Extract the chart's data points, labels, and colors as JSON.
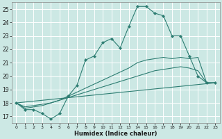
{
  "title": "",
  "xlabel": "Humidex (Indice chaleur)",
  "xlim": [
    -0.5,
    23.5
  ],
  "ylim": [
    16.5,
    25.5
  ],
  "yticks": [
    17,
    18,
    19,
    20,
    21,
    22,
    23,
    24,
    25
  ],
  "xticks": [
    0,
    1,
    2,
    3,
    4,
    5,
    6,
    7,
    8,
    9,
    10,
    11,
    12,
    13,
    14,
    15,
    16,
    17,
    18,
    19,
    20,
    21,
    22,
    23
  ],
  "background_color": "#cce8e4",
  "grid_color": "#ffffff",
  "line_color": "#2d7d72",
  "line1": {
    "x": [
      0,
      1,
      2,
      3,
      4,
      5,
      6,
      7,
      8,
      9,
      10,
      11,
      12,
      13,
      14,
      15,
      16,
      17,
      18,
      19,
      20,
      21,
      22,
      23
    ],
    "y": [
      18.0,
      17.5,
      17.5,
      17.2,
      16.8,
      17.2,
      18.5,
      19.3,
      21.2,
      21.5,
      22.5,
      22.8,
      22.1,
      23.7,
      25.2,
      25.2,
      24.7,
      24.5,
      23.0,
      23.0,
      21.5,
      20.0,
      19.5,
      19.5
    ]
  },
  "line2": {
    "x": [
      0,
      1,
      2,
      3,
      4,
      5,
      6,
      7,
      8,
      9,
      10,
      11,
      12,
      13,
      14,
      15,
      16,
      17,
      18,
      19,
      20,
      21,
      22,
      23
    ],
    "y": [
      18.0,
      17.6,
      17.7,
      17.8,
      18.0,
      18.2,
      18.5,
      18.8,
      19.1,
      19.4,
      19.7,
      20.0,
      20.3,
      20.6,
      21.0,
      21.2,
      21.3,
      21.4,
      21.3,
      21.4,
      21.3,
      21.4,
      19.5,
      19.5
    ]
  },
  "line3": {
    "x": [
      0,
      1,
      2,
      3,
      4,
      5,
      6,
      7,
      8,
      9,
      10,
      11,
      12,
      13,
      14,
      15,
      16,
      17,
      18,
      19,
      20,
      21,
      22,
      23
    ],
    "y": [
      18.0,
      17.7,
      17.8,
      17.9,
      18.0,
      18.2,
      18.4,
      18.6,
      18.8,
      19.0,
      19.2,
      19.4,
      19.6,
      19.8,
      20.0,
      20.2,
      20.4,
      20.5,
      20.6,
      20.7,
      20.6,
      20.4,
      19.5,
      19.5
    ]
  },
  "line4": {
    "x": [
      0,
      23
    ],
    "y": [
      18.0,
      19.5
    ]
  }
}
